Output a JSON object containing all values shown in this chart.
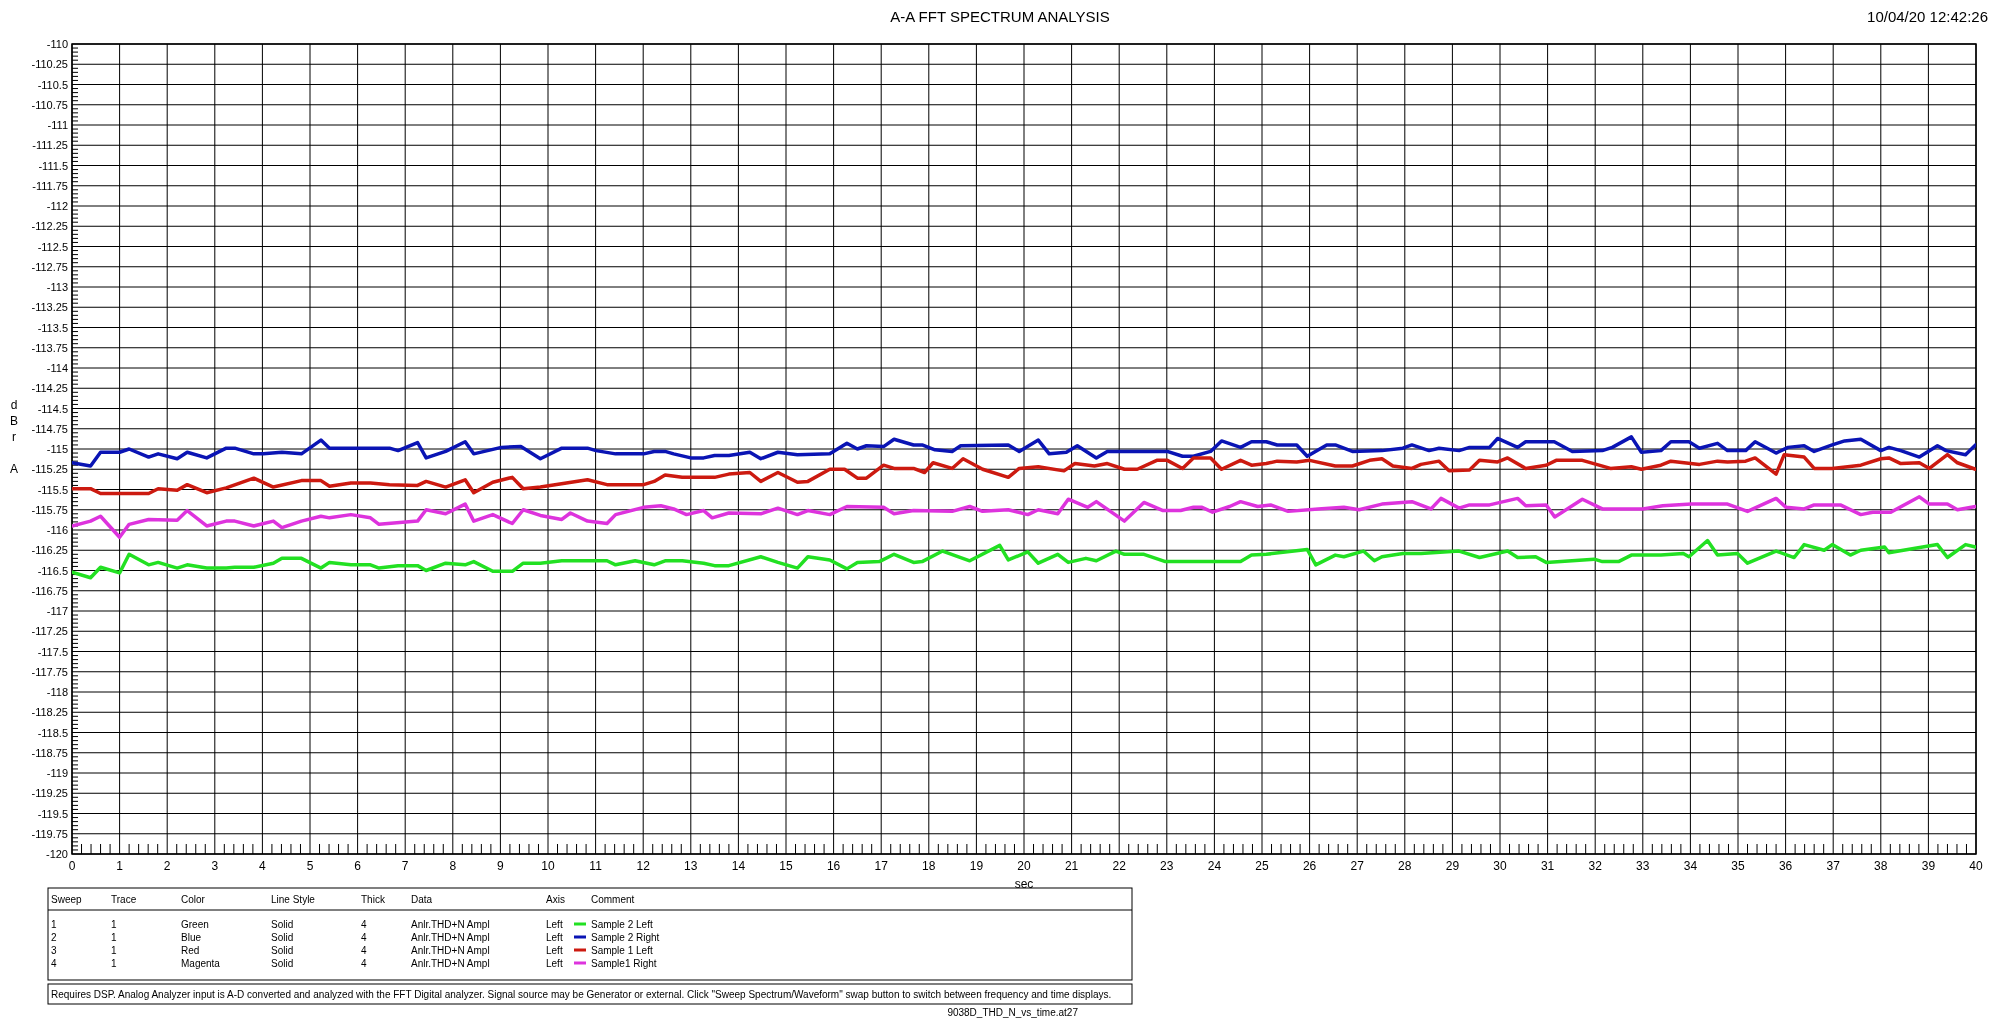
{
  "chart_data": {
    "type": "line",
    "title": "A-A FFT SPECTRUM ANALYSIS",
    "subtitle": "10/04/20 12:42:26",
    "xlabel": "sec",
    "ylabel": "dBr A",
    "xlim": [
      0,
      40
    ],
    "xticks": [
      0,
      1,
      2,
      3,
      4,
      5,
      6,
      7,
      8,
      9,
      10,
      11,
      12,
      13,
      14,
      15,
      16,
      17,
      18,
      19,
      20,
      21,
      22,
      23,
      24,
      25,
      26,
      27,
      28,
      29,
      30,
      31,
      32,
      33,
      34,
      35,
      36,
      37,
      38,
      39,
      40
    ],
    "ylim": [
      -120,
      -110
    ],
    "yticks": [
      -120,
      -119.75,
      -119.5,
      -119.25,
      -119,
      -118.75,
      -118.5,
      -118.25,
      -118,
      -117.75,
      -117.5,
      -117.25,
      -117,
      -116.75,
      -116.5,
      -116.25,
      -116,
      -115.75,
      -115.5,
      -115.25,
      -115,
      -114.75,
      -114.5,
      -114.25,
      -114,
      -113.75,
      -113.5,
      -113.25,
      -113,
      -112.75,
      -112.5,
      -112.25,
      -112,
      -111.75,
      -111.5,
      -111.25,
      -111,
      -110.75,
      -110.5,
      -110.25,
      -110
    ],
    "grid": true,
    "legend": "bottom",
    "line_style": "solid",
    "marker": "none",
    "series": [
      {
        "name": "Sample 2 Left",
        "color": "#22e022",
        "x": [
          0,
          0.39,
          0.6,
          1.0,
          1.2,
          1.61,
          1.81,
          2.21,
          2.42,
          2.83,
          3.24,
          3.42,
          3.82,
          4.23,
          4.41,
          4.82,
          5.23,
          5.41,
          5.86,
          6.27,
          6.45,
          6.85,
          7.26,
          7.44,
          7.85,
          8.26,
          8.44,
          8.84,
          9.25,
          9.48,
          9.84,
          10.29,
          11.24,
          11.42,
          11.83,
          12.23,
          12.46,
          12.82,
          13.27,
          13.5,
          13.8,
          14.47,
          14.83,
          15.24,
          15.46,
          15.92,
          16.28,
          16.5,
          16.96,
          17.27,
          17.68,
          17.86,
          18.29,
          18.86,
          19.49,
          19.67,
          20.08,
          20.3,
          20.71,
          20.93,
          21.3,
          21.52,
          21.93,
          22.11,
          22.52,
          22.97,
          24.55,
          24.78,
          25.09,
          25.95,
          26.13,
          26.54,
          26.72,
          27.13,
          27.36,
          27.52,
          27.96,
          28.34,
          29.14,
          29.57,
          30.16,
          30.37,
          30.75,
          30.97,
          31.98,
          32.15,
          32.49,
          32.76,
          33.38,
          33.85,
          33.97,
          34.36,
          34.57,
          34.99,
          35.2,
          35.8,
          36.18,
          36.39,
          36.81,
          36.98,
          37.36,
          37.58,
          38.08,
          38.17,
          38.38,
          39.19,
          39.4,
          39.78,
          39.99
        ],
        "values": [
          -116.52,
          -116.59,
          -116.46,
          -116.53,
          -116.3,
          -116.43,
          -116.4,
          -116.47,
          -116.43,
          -116.47,
          -116.47,
          -116.46,
          -116.46,
          -116.41,
          -116.35,
          -116.35,
          -116.47,
          -116.4,
          -116.43,
          -116.43,
          -116.47,
          -116.44,
          -116.44,
          -116.5,
          -116.41,
          -116.43,
          -116.39,
          -116.51,
          -116.51,
          -116.41,
          -116.41,
          -116.38,
          -116.38,
          -116.43,
          -116.38,
          -116.43,
          -116.38,
          -116.38,
          -116.41,
          -116.44,
          -116.44,
          -116.33,
          -116.4,
          -116.47,
          -116.33,
          -116.37,
          -116.48,
          -116.4,
          -116.39,
          -116.3,
          -116.4,
          -116.39,
          -116.26,
          -116.38,
          -116.19,
          -116.37,
          -116.27,
          -116.41,
          -116.3,
          -116.4,
          -116.35,
          -116.38,
          -116.26,
          -116.3,
          -116.3,
          -116.39,
          -116.39,
          -116.31,
          -116.3,
          -116.24,
          -116.43,
          -116.31,
          -116.33,
          -116.26,
          -116.38,
          -116.33,
          -116.29,
          -116.29,
          -116.26,
          -116.34,
          -116.26,
          -116.34,
          -116.33,
          -116.4,
          -116.36,
          -116.39,
          -116.39,
          -116.31,
          -116.31,
          -116.29,
          -116.33,
          -116.13,
          -116.31,
          -116.29,
          -116.41,
          -116.26,
          -116.34,
          -116.18,
          -116.25,
          -116.18,
          -116.31,
          -116.25,
          -116.21,
          -116.28,
          -116.26,
          -116.18,
          -116.34,
          -116.18,
          -116.21
        ]
      },
      {
        "name": "Sample 2 Right",
        "color": "#0a14b4",
        "x": [
          0,
          0.39,
          0.6,
          1.0,
          1.2,
          1.61,
          1.81,
          2.21,
          2.42,
          2.83,
          3.24,
          3.42,
          3.82,
          4.02,
          4.41,
          4.82,
          5.23,
          5.41,
          6.67,
          6.85,
          7.26,
          7.44,
          7.85,
          8.26,
          8.44,
          9.02,
          9.43,
          9.84,
          10.29,
          10.83,
          11.01,
          11.42,
          12.01,
          12.23,
          12.46,
          12.64,
          13.0,
          13.27,
          13.5,
          13.8,
          14.24,
          14.47,
          14.83,
          15.24,
          15.92,
          16.28,
          16.5,
          16.69,
          17.05,
          17.27,
          17.68,
          17.86,
          18.13,
          18.49,
          18.67,
          19.67,
          19.9,
          20.3,
          20.53,
          20.89,
          21.12,
          21.52,
          21.75,
          23.01,
          23.33,
          23.56,
          23.92,
          24.15,
          24.55,
          24.78,
          25.09,
          25.32,
          25.73,
          25.95,
          26.36,
          26.54,
          26.9,
          27.52,
          27.96,
          28.15,
          28.51,
          28.72,
          29.14,
          29.36,
          29.78,
          29.95,
          30.37,
          30.54,
          31.14,
          31.52,
          32.15,
          32.36,
          32.76,
          32.97,
          33.38,
          33.59,
          33.97,
          34.19,
          34.57,
          34.78,
          35.16,
          35.36,
          35.8,
          36.05,
          36.39,
          36.6,
          36.98,
          37.24,
          37.58,
          38.0,
          38.17,
          38.42,
          38.81,
          39.19,
          39.37,
          39.78,
          39.99
        ],
        "values": [
          -115.17,
          -115.21,
          -115.04,
          -115.04,
          -115.0,
          -115.1,
          -115.06,
          -115.12,
          -115.04,
          -115.11,
          -114.99,
          -114.99,
          -115.06,
          -115.06,
          -115.04,
          -115.06,
          -114.89,
          -114.99,
          -114.99,
          -115.02,
          -114.92,
          -115.11,
          -115.03,
          -114.91,
          -115.06,
          -114.98,
          -114.97,
          -115.12,
          -114.99,
          -114.99,
          -115.02,
          -115.06,
          -115.06,
          -115.03,
          -115.03,
          -115.06,
          -115.11,
          -115.11,
          -115.08,
          -115.08,
          -115.04,
          -115.12,
          -115.04,
          -115.07,
          -115.06,
          -114.93,
          -115.0,
          -114.96,
          -114.97,
          -114.88,
          -114.95,
          -114.95,
          -115.01,
          -115.03,
          -114.96,
          -114.95,
          -115.03,
          -114.89,
          -115.06,
          -115.04,
          -114.96,
          -115.11,
          -115.03,
          -115.03,
          -115.09,
          -115.09,
          -115.03,
          -114.9,
          -114.98,
          -114.91,
          -114.91,
          -114.95,
          -114.95,
          -115.09,
          -114.95,
          -114.95,
          -115.03,
          -115.02,
          -114.99,
          -114.95,
          -115.02,
          -114.99,
          -115.02,
          -114.98,
          -114.98,
          -114.87,
          -114.98,
          -114.91,
          -114.91,
          -115.03,
          -115.02,
          -114.98,
          -114.85,
          -115.04,
          -115.02,
          -114.91,
          -114.91,
          -114.99,
          -114.93,
          -115.02,
          -115.02,
          -114.91,
          -115.05,
          -114.98,
          -114.96,
          -115.03,
          -114.95,
          -114.9,
          -114.88,
          -115.02,
          -114.98,
          -115.02,
          -115.1,
          -114.96,
          -115.02,
          -115.07,
          -114.95
        ]
      },
      {
        "name": "Sample 1 Left",
        "color": "#cc1a10",
        "x": [
          0,
          0.39,
          0.6,
          1.61,
          1.81,
          2.21,
          2.42,
          2.83,
          3.24,
          3.82,
          4.23,
          4.82,
          5.23,
          5.41,
          5.86,
          6.27,
          6.67,
          7.26,
          7.44,
          7.85,
          8.26,
          8.44,
          8.84,
          9.25,
          9.48,
          9.84,
          10.83,
          11.24,
          12.01,
          12.23,
          12.46,
          12.82,
          13.5,
          13.8,
          14.24,
          14.47,
          14.83,
          15.24,
          15.46,
          15.92,
          16.23,
          16.5,
          16.69,
          17.05,
          17.27,
          17.68,
          17.91,
          18.09,
          18.49,
          18.72,
          19.13,
          19.67,
          19.9,
          20.3,
          20.84,
          21.07,
          21.48,
          21.75,
          22.11,
          22.38,
          22.79,
          23.01,
          23.33,
          23.56,
          23.92,
          24.15,
          24.55,
          24.78,
          25.09,
          25.32,
          25.73,
          26.0,
          26.54,
          26.9,
          27.26,
          27.52,
          27.75,
          28.15,
          28.34,
          28.72,
          28.93,
          29.36,
          29.57,
          29.95,
          30.16,
          30.54,
          30.97,
          31.18,
          31.73,
          32.32,
          32.76,
          32.97,
          33.38,
          33.59,
          34.19,
          34.57,
          34.78,
          35.16,
          35.36,
          35.8,
          35.97,
          36.39,
          36.6,
          36.98,
          37.58,
          38.0,
          38.17,
          38.42,
          38.81,
          39.02,
          39.4,
          39.61,
          39.99
        ],
        "values": [
          -115.49,
          -115.49,
          -115.55,
          -115.55,
          -115.49,
          -115.51,
          -115.44,
          -115.54,
          -115.48,
          -115.36,
          -115.47,
          -115.39,
          -115.39,
          -115.46,
          -115.42,
          -115.42,
          -115.44,
          -115.45,
          -115.4,
          -115.47,
          -115.38,
          -115.54,
          -115.41,
          -115.35,
          -115.49,
          -115.47,
          -115.38,
          -115.44,
          -115.44,
          -115.4,
          -115.32,
          -115.35,
          -115.35,
          -115.31,
          -115.29,
          -115.4,
          -115.29,
          -115.41,
          -115.4,
          -115.25,
          -115.25,
          -115.36,
          -115.36,
          -115.2,
          -115.24,
          -115.24,
          -115.29,
          -115.17,
          -115.24,
          -115.12,
          -115.25,
          -115.35,
          -115.24,
          -115.22,
          -115.27,
          -115.18,
          -115.21,
          -115.18,
          -115.25,
          -115.25,
          -115.14,
          -115.14,
          -115.24,
          -115.11,
          -115.11,
          -115.25,
          -115.14,
          -115.2,
          -115.18,
          -115.15,
          -115.16,
          -115.14,
          -115.21,
          -115.21,
          -115.14,
          -115.12,
          -115.21,
          -115.24,
          -115.19,
          -115.15,
          -115.27,
          -115.26,
          -115.14,
          -115.16,
          -115.11,
          -115.24,
          -115.2,
          -115.14,
          -115.14,
          -115.24,
          -115.22,
          -115.25,
          -115.2,
          -115.15,
          -115.19,
          -115.15,
          -115.16,
          -115.15,
          -115.11,
          -115.31,
          -115.07,
          -115.1,
          -115.24,
          -115.24,
          -115.2,
          -115.12,
          -115.11,
          -115.18,
          -115.17,
          -115.24,
          -115.07,
          -115.17,
          -115.25
        ]
      },
      {
        "name": "Sample1 Right",
        "color": "#dd33dd",
        "x": [
          0,
          0.39,
          0.6,
          1.0,
          1.2,
          1.61,
          2.21,
          2.42,
          2.83,
          3.24,
          3.42,
          3.82,
          4.23,
          4.41,
          4.82,
          5.23,
          5.41,
          5.86,
          6.27,
          6.45,
          7.26,
          7.44,
          7.85,
          8.26,
          8.44,
          8.84,
          9.25,
          9.48,
          9.84,
          10.29,
          10.47,
          10.83,
          11.24,
          11.42,
          12.01,
          12.37,
          12.64,
          12.91,
          13.27,
          13.45,
          13.8,
          14.47,
          14.83,
          15.24,
          15.46,
          15.92,
          16.28,
          17.05,
          17.27,
          17.68,
          18.49,
          18.86,
          19.13,
          19.67,
          20.08,
          20.3,
          20.71,
          20.93,
          21.34,
          21.52,
          22.11,
          22.52,
          22.92,
          23.29,
          23.56,
          23.74,
          23.96,
          24.32,
          24.55,
          24.91,
          25.18,
          25.55,
          26.18,
          26.72,
          27.04,
          27.52,
          28.15,
          28.55,
          28.76,
          29.14,
          29.36,
          29.78,
          30.37,
          30.54,
          30.97,
          31.15,
          31.73,
          32.15,
          33.0,
          33.42,
          34.02,
          34.78,
          35.2,
          35.8,
          36.01,
          36.39,
          36.6,
          37.15,
          37.58,
          37.83,
          38.21,
          38.81,
          39.02,
          39.4,
          39.61,
          39.99
        ],
        "values": [
          -115.95,
          -115.89,
          -115.83,
          -116.09,
          -115.93,
          -115.87,
          -115.88,
          -115.76,
          -115.95,
          -115.89,
          -115.89,
          -115.95,
          -115.89,
          -115.97,
          -115.89,
          -115.83,
          -115.85,
          -115.81,
          -115.85,
          -115.93,
          -115.89,
          -115.75,
          -115.8,
          -115.68,
          -115.89,
          -115.81,
          -115.92,
          -115.75,
          -115.82,
          -115.87,
          -115.79,
          -115.89,
          -115.92,
          -115.81,
          -115.72,
          -115.7,
          -115.74,
          -115.81,
          -115.76,
          -115.85,
          -115.79,
          -115.8,
          -115.73,
          -115.81,
          -115.76,
          -115.81,
          -115.71,
          -115.72,
          -115.8,
          -115.76,
          -115.77,
          -115.71,
          -115.77,
          -115.75,
          -115.81,
          -115.75,
          -115.8,
          -115.62,
          -115.72,
          -115.65,
          -115.89,
          -115.66,
          -115.76,
          -115.76,
          -115.72,
          -115.72,
          -115.78,
          -115.71,
          -115.65,
          -115.71,
          -115.69,
          -115.77,
          -115.74,
          -115.72,
          -115.75,
          -115.68,
          -115.65,
          -115.74,
          -115.61,
          -115.73,
          -115.69,
          -115.69,
          -115.61,
          -115.7,
          -115.69,
          -115.84,
          -115.62,
          -115.74,
          -115.74,
          -115.7,
          -115.68,
          -115.68,
          -115.77,
          -115.61,
          -115.72,
          -115.74,
          -115.69,
          -115.69,
          -115.81,
          -115.78,
          -115.78,
          -115.59,
          -115.68,
          -115.68,
          -115.75,
          -115.71
        ]
      }
    ],
    "annotations": [
      "Sweep",
      "Trace",
      "Color",
      "Line Style",
      "Thick",
      "Data",
      "Axis",
      "Comment",
      "1",
      "1",
      "Green",
      "Solid",
      "4",
      "Anlr.THD+N Ampl",
      "Left",
      "2",
      "1",
      "Blue",
      "Solid",
      "4",
      "Anlr.THD+N Ampl",
      "Left",
      "3",
      "1",
      "Red",
      "Solid",
      "4",
      "Anlr.THD+N Ampl",
      "Left",
      "4",
      "1",
      "Magenta",
      "Solid",
      "4",
      "Anlr.THD+N Ampl",
      "Left",
      "Requires DSP.  Analog Analyzer input is A-D converted and analyzed with the FFT Digital analyzer.  Signal source may be Generator or external.  Click \"Sweep Spectrum/Waveform\" swap button to switch between frequency and time displays.",
      "9038D_THD_N_vs_time.at27"
    ]
  }
}
